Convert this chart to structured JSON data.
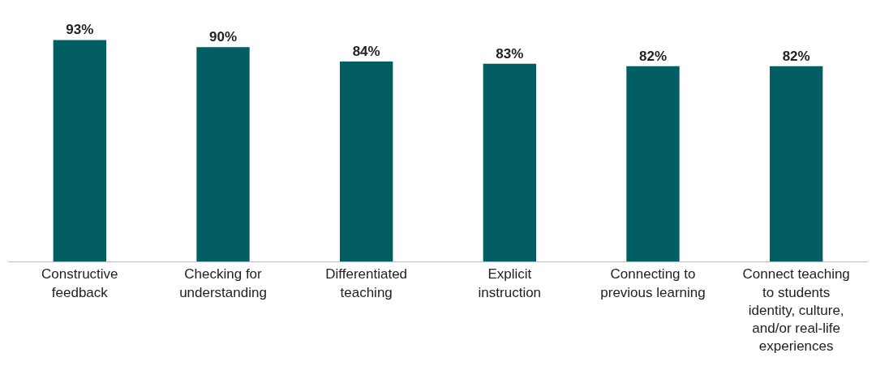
{
  "chart_data": {
    "type": "bar",
    "categories": [
      "Constructive feedback",
      "Checking for understanding",
      "Differentiated teaching",
      "Explicit instruction",
      "Connecting to previous learning",
      "Connect teaching to students identity, culture, and/or real-life experiences"
    ],
    "values": [
      93,
      90,
      84,
      83,
      82,
      82
    ],
    "color": "#035e63",
    "tick_labels": "x",
    "data_labels": true,
    "value_labels": [
      "93%",
      "90%",
      "84%",
      "83%",
      "82%",
      "82%"
    ],
    "legend": false
  }
}
